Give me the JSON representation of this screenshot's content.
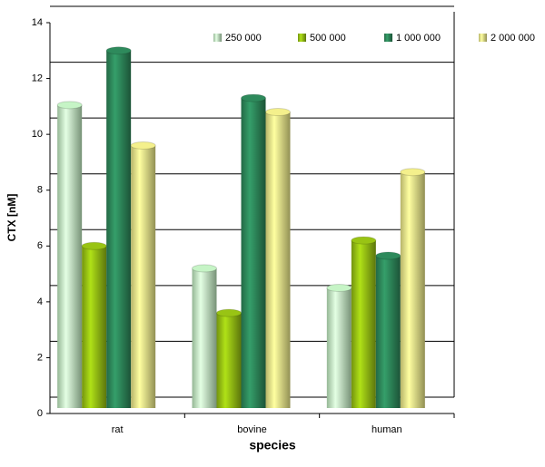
{
  "chart_data": {
    "type": "bar",
    "categories": [
      "rat",
      "bovine",
      "human"
    ],
    "series": [
      {
        "name": "250 000",
        "color": "#c6f4c6",
        "values": [
          11.05,
          5.2,
          4.5
        ]
      },
      {
        "name": "500 000",
        "color": "#99c414",
        "values": [
          6.0,
          3.6,
          6.2
        ]
      },
      {
        "name": "1 000 000",
        "color": "#2e8a5c",
        "values": [
          13.0,
          11.3,
          5.65
        ]
      },
      {
        "name": "2 000 000",
        "color": "#f4f08c",
        "values": [
          9.6,
          10.8,
          8.65
        ]
      }
    ],
    "xlabel": "species",
    "ylabel": "CTX [nM]",
    "ylim": [
      0,
      14
    ],
    "yticks": [
      0,
      2,
      4,
      6,
      8,
      10,
      12,
      14
    ],
    "grid": true,
    "legend": "top"
  }
}
